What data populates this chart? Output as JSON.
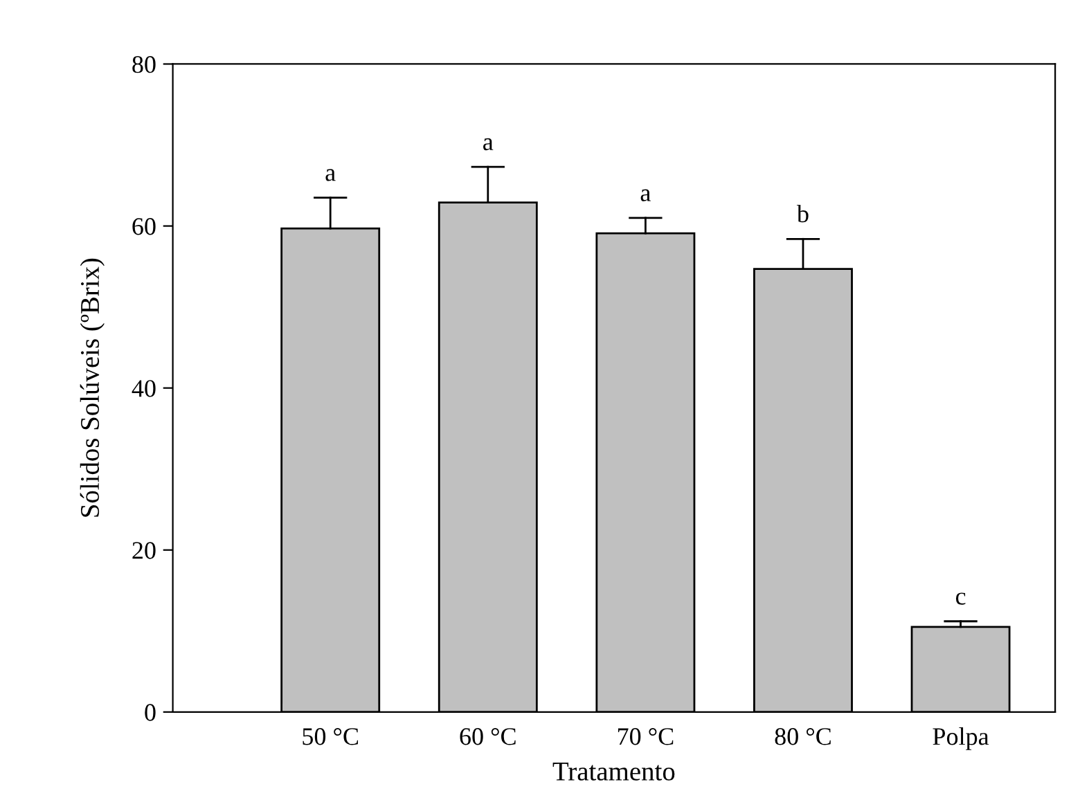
{
  "chart_data": {
    "type": "bar",
    "xlabel": "Tratamento",
    "ylabel": "Sólidos Solúveis (ºBrix)",
    "categories": [
      "50 °C",
      "60 °C",
      "70 °C",
      "80 °C",
      "Polpa"
    ],
    "values": [
      59.7,
      62.9,
      59.1,
      54.7,
      10.5
    ],
    "errors": [
      [
        59.7,
        63.5
      ],
      [
        62.9,
        67.3
      ],
      [
        59.1,
        61.0
      ],
      [
        54.7,
        58.4
      ],
      [
        10.5,
        11.2
      ]
    ],
    "color": "#c0c0c0",
    "ylim": [
      0,
      80
    ],
    "yticks": [
      0,
      20,
      40,
      60,
      80
    ],
    "grid": false,
    "legend": false,
    "annotations": [
      {
        "text": "a",
        "x": "50 °C",
        "y": 63.5
      },
      {
        "text": "a",
        "x": "60 °C",
        "y": 67.3
      },
      {
        "text": "a",
        "x": "70 °C",
        "y": 61.0
      },
      {
        "text": "b",
        "x": "80 °C",
        "y": 58.4
      },
      {
        "text": "c",
        "x": "Polpa",
        "y": 11.2
      }
    ]
  }
}
